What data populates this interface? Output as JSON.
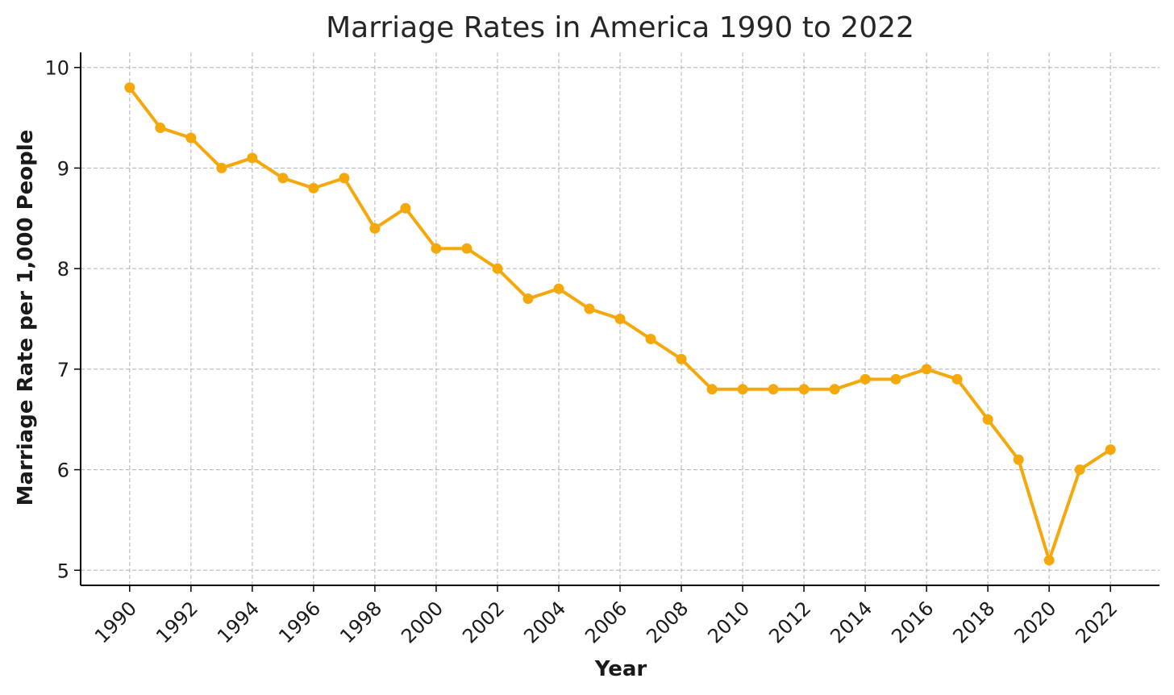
{
  "chart_data": {
    "type": "line",
    "title": "Marriage Rates in America 1990 to 2022",
    "xlabel": "Year",
    "ylabel": "Marriage Rate per 1,000 People",
    "x": [
      1990,
      1991,
      1992,
      1993,
      1994,
      1995,
      1996,
      1997,
      1998,
      1999,
      2000,
      2001,
      2002,
      2003,
      2004,
      2005,
      2006,
      2007,
      2008,
      2009,
      2010,
      2011,
      2012,
      2013,
      2014,
      2015,
      2016,
      2017,
      2018,
      2019,
      2020,
      2021,
      2022
    ],
    "series": [
      {
        "values": [
          9.8,
          9.4,
          9.3,
          9.0,
          9.1,
          8.9,
          8.8,
          8.9,
          8.4,
          8.6,
          8.2,
          8.2,
          8.0,
          7.7,
          7.8,
          7.6,
          7.5,
          7.3,
          7.1,
          6.8,
          6.8,
          6.8,
          6.8,
          6.8,
          6.9,
          6.9,
          7.0,
          6.9,
          6.5,
          6.1,
          5.1,
          6.0,
          6.2
        ],
        "color": "#f5a80a"
      }
    ],
    "xticks": [
      "1990",
      "1992",
      "1994",
      "1996",
      "1998",
      "2000",
      "2002",
      "2004",
      "2006",
      "2008",
      "2010",
      "2012",
      "2014",
      "2016",
      "2018",
      "2020",
      "2022"
    ],
    "yticks": [
      "5",
      "6",
      "7",
      "8",
      "9",
      "10"
    ],
    "xlim": [
      1988.4,
      2023.6
    ],
    "ylim": [
      4.85,
      10.15
    ],
    "grid": true,
    "marker": "circle"
  }
}
